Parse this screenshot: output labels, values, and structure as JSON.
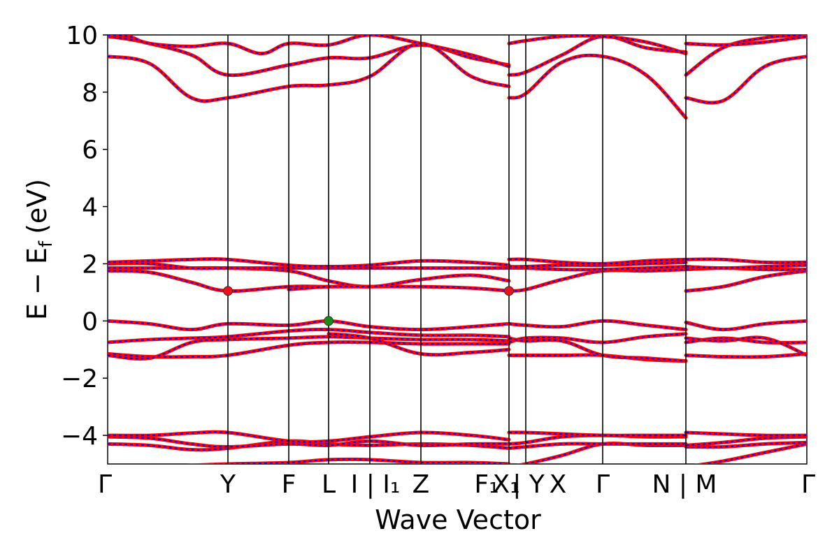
{
  "chart_data": {
    "type": "line",
    "title": "",
    "xlabel": "Wave Vector",
    "ylabel": "E − E",
    "ylabel_sub": "f",
    "ylabel_unit": "(eV)",
    "ylim": [
      -5,
      10
    ],
    "yticks": [
      -4,
      -2,
      0,
      2,
      4,
      6,
      8,
      10
    ],
    "ytick_labels": [
      "−4",
      "−2",
      "0",
      "2",
      "4",
      "6",
      "8",
      "10"
    ],
    "xlim": [
      0,
      1
    ],
    "kpoints": [
      {
        "x": 0.0,
        "label": "Γ"
      },
      {
        "x": 0.172,
        "label": "Y"
      },
      {
        "x": 0.259,
        "label": "F"
      },
      {
        "x": 0.316,
        "label": "L"
      },
      {
        "x": 0.375,
        "label": "I | I₁"
      },
      {
        "x": 0.448,
        "label": "Z"
      },
      {
        "x": 0.574,
        "label": "F₁"
      },
      {
        "x": 0.574,
        "label": "X₁"
      },
      {
        "x": 0.598,
        "label": "| Y"
      },
      {
        "x": 0.598,
        "label": "X"
      },
      {
        "x": 0.708,
        "label": "Γ"
      },
      {
        "x": 0.827,
        "label": "N | M"
      },
      {
        "x": 1.0,
        "label": "Γ"
      }
    ],
    "vlines": [
      0.172,
      0.259,
      0.316,
      0.375,
      0.448,
      0.574,
      0.598,
      0.708,
      0.827
    ],
    "series_style": {
      "primary_color": "#ff0000",
      "dash_color": "#0000ff"
    },
    "markers": [
      {
        "name": "CBM",
        "x": 0.172,
        "y": 1.05,
        "color": "#e8141b"
      },
      {
        "name": "CBM",
        "x": 0.574,
        "y": 1.05,
        "color": "#e8141b"
      },
      {
        "name": "VBM",
        "x": 0.316,
        "y": 0.0,
        "color": "#1a8a1a"
      }
    ],
    "bands": [
      {
        "x": [
          0,
          0.06,
          0.12,
          0.172,
          0.259,
          0.316,
          0.375,
          0.448,
          0.52,
          0.574
        ],
        "y": [
          -5.2,
          -5.15,
          -5.05,
          -5.0,
          -4.95,
          -4.85,
          -4.85,
          -4.95,
          -4.95,
          -5.0
        ]
      },
      {
        "x": [
          0,
          0.06,
          0.12,
          0.172,
          0.259,
          0.316,
          0.375,
          0.448,
          0.52,
          0.574
        ],
        "y": [
          -4.3,
          -4.35,
          -4.5,
          -4.45,
          -4.2,
          -4.3,
          -4.35,
          -4.3,
          -4.35,
          -4.45
        ]
      },
      {
        "x": [
          0,
          0.06,
          0.12,
          0.172,
          0.259,
          0.316,
          0.375,
          0.448,
          0.52,
          0.574
        ],
        "y": [
          -4.05,
          -4.1,
          -4.3,
          -4.4,
          -4.3,
          -4.35,
          -4.2,
          -4.35,
          -4.3,
          -4.3
        ]
      },
      {
        "x": [
          0,
          0.06,
          0.12,
          0.172,
          0.259,
          0.316,
          0.375,
          0.448,
          0.52,
          0.574
        ],
        "y": [
          -4.0,
          -4.0,
          -3.92,
          -3.9,
          -4.2,
          -4.2,
          -4.05,
          -3.9,
          -4.0,
          -4.15
        ]
      },
      {
        "x": [
          0.574,
          0.598,
          0.65,
          0.708,
          0.77,
          0.827
        ],
        "y": [
          -5.1,
          -5.0,
          -4.7,
          -4.3,
          -4.35,
          -4.35
        ]
      },
      {
        "x": [
          0.574,
          0.598,
          0.65,
          0.708,
          0.77,
          0.827
        ],
        "y": [
          -4.45,
          -4.4,
          -4.3,
          -4.3,
          -4.3,
          -4.3
        ]
      },
      {
        "x": [
          0.574,
          0.598,
          0.65,
          0.708,
          0.77,
          0.827
        ],
        "y": [
          -4.3,
          -4.25,
          -4.05,
          -4.0,
          -4.05,
          -4.05
        ]
      },
      {
        "x": [
          0.574,
          0.598,
          0.65,
          0.708,
          0.77,
          0.827
        ],
        "y": [
          -3.9,
          -3.9,
          -3.95,
          -4.0,
          -4.0,
          -4.0
        ]
      },
      {
        "x": [
          0.827,
          0.88,
          0.94,
          1.0
        ],
        "y": [
          -5.1,
          -4.9,
          -4.6,
          -4.3
        ]
      },
      {
        "x": [
          0.827,
          0.88,
          0.94,
          1.0
        ],
        "y": [
          -4.4,
          -4.4,
          -4.3,
          -4.25
        ]
      },
      {
        "x": [
          0.827,
          0.88,
          0.94,
          1.0
        ],
        "y": [
          -4.35,
          -4.25,
          -4.1,
          -4.05
        ]
      },
      {
        "x": [
          0.827,
          0.88,
          0.94,
          1.0
        ],
        "y": [
          -3.9,
          -3.95,
          -4.0,
          -4.0
        ]
      },
      {
        "x": [
          0,
          0.06,
          0.12,
          0.172,
          0.259,
          0.316,
          0.375,
          0.448,
          0.52,
          0.574
        ],
        "y": [
          -1.15,
          -1.25,
          -1.25,
          -1.2,
          -0.85,
          -0.75,
          -0.75,
          -0.8,
          -0.8,
          -0.8
        ]
      },
      {
        "x": [
          0,
          0.06,
          0.12,
          0.172,
          0.259,
          0.316,
          0.375,
          0.448,
          0.52,
          0.574
        ],
        "y": [
          -1.2,
          -1.3,
          -0.75,
          -0.65,
          -0.6,
          -0.55,
          -0.6,
          -0.65,
          -0.65,
          -0.7
        ]
      },
      {
        "x": [
          0,
          0.06,
          0.12,
          0.172,
          0.259,
          0.316,
          0.375,
          0.448,
          0.52,
          0.574
        ],
        "y": [
          -0.75,
          -0.65,
          -0.6,
          -0.55,
          -0.35,
          -0.3,
          -0.4,
          -0.5,
          -0.5,
          -0.55
        ]
      },
      {
        "x": [
          0,
          0.06,
          0.12,
          0.172,
          0.259,
          0.316,
          0.375,
          0.448,
          0.52,
          0.574
        ],
        "y": [
          0.0,
          -0.1,
          -0.3,
          -0.1,
          -0.15,
          0.0,
          -0.2,
          -0.3,
          -0.2,
          -0.1
        ]
      },
      {
        "x": [
          0.316,
          0.375,
          0.448,
          0.52,
          0.574
        ],
        "y": [
          -0.45,
          -0.6,
          -1.15,
          -1.1,
          -1.0
        ]
      },
      {
        "x": [
          0.574,
          0.598,
          0.65,
          0.708,
          0.77,
          0.827
        ],
        "y": [
          -1.2,
          -1.2,
          -1.2,
          -1.2,
          -1.35,
          -1.4
        ]
      },
      {
        "x": [
          0.574,
          0.598,
          0.65,
          0.708,
          0.77,
          0.827
        ],
        "y": [
          -0.75,
          -0.6,
          -0.6,
          -0.75,
          -0.55,
          -0.45
        ]
      },
      {
        "x": [
          0.574,
          0.598,
          0.65,
          0.708,
          0.77,
          0.827
        ],
        "y": [
          -0.6,
          -0.7,
          -0.7,
          -1.2,
          -1.3,
          -1.4
        ]
      },
      {
        "x": [
          0.574,
          0.598,
          0.65,
          0.708,
          0.77,
          0.827
        ],
        "y": [
          -0.1,
          -0.15,
          -0.2,
          0.0,
          -0.15,
          -0.3
        ]
      },
      {
        "x": [
          0.827,
          0.88,
          0.94,
          1.0
        ],
        "y": [
          -1.2,
          -1.25,
          -1.25,
          -1.15
        ]
      },
      {
        "x": [
          0.827,
          0.88,
          0.94,
          1.0
        ],
        "y": [
          -0.75,
          -0.6,
          -0.75,
          -0.75
        ]
      },
      {
        "x": [
          0.827,
          0.88,
          0.94,
          1.0
        ],
        "y": [
          -0.6,
          -0.7,
          -0.6,
          -1.2
        ]
      },
      {
        "x": [
          0.827,
          0.88,
          0.94,
          1.0
        ],
        "y": [
          -0.05,
          -0.3,
          -0.1,
          0.0
        ]
      },
      {
        "x": [
          0,
          0.06,
          0.12,
          0.172,
          0.259,
          0.316,
          0.375,
          0.448,
          0.52,
          0.574
        ],
        "y": [
          1.75,
          1.7,
          1.35,
          1.05,
          1.2,
          1.2,
          1.2,
          1.2,
          1.15,
          1.05
        ]
      },
      {
        "x": [
          0,
          0.06,
          0.12,
          0.172,
          0.259,
          0.316,
          0.375,
          0.448,
          0.52,
          0.574
        ],
        "y": [
          1.85,
          1.85,
          1.85,
          1.85,
          1.75,
          1.4,
          1.2,
          1.45,
          1.6,
          1.4
        ]
      },
      {
        "x": [
          0,
          0.06,
          0.12,
          0.172,
          0.259,
          0.316,
          0.375,
          0.448,
          0.52,
          0.574
        ],
        "y": [
          2.0,
          2.0,
          1.85,
          1.85,
          1.85,
          1.85,
          1.85,
          1.85,
          1.85,
          1.85
        ]
      },
      {
        "x": [
          0,
          0.06,
          0.12,
          0.172,
          0.259,
          0.316,
          0.375,
          0.448,
          0.52,
          0.574
        ],
        "y": [
          2.05,
          2.1,
          2.15,
          2.15,
          1.95,
          1.9,
          1.95,
          2.1,
          2.05,
          1.95
        ]
      },
      {
        "x": [
          0.259,
          0.316,
          0.375
        ],
        "y": [
          1.1,
          1.2,
          1.2
        ]
      },
      {
        "x": [
          0.574,
          0.598,
          0.65,
          0.708,
          0.77,
          0.827
        ],
        "y": [
          1.05,
          1.1,
          1.45,
          1.75,
          1.75,
          1.8
        ]
      },
      {
        "x": [
          0.574,
          0.598,
          0.65,
          0.708,
          0.77,
          0.827
        ],
        "y": [
          1.85,
          1.85,
          1.8,
          1.8,
          1.85,
          1.9
        ]
      },
      {
        "x": [
          0.574,
          0.598,
          0.65,
          0.708,
          0.77,
          0.827
        ],
        "y": [
          1.9,
          1.9,
          1.95,
          1.95,
          2.0,
          2.05
        ]
      },
      {
        "x": [
          0.574,
          0.598,
          0.65,
          0.708,
          0.77,
          0.827
        ],
        "y": [
          2.15,
          2.15,
          2.05,
          2.0,
          2.1,
          2.15
        ]
      },
      {
        "x": [
          0.827,
          0.88,
          0.94,
          1.0
        ],
        "y": [
          1.05,
          1.2,
          1.55,
          1.75
        ]
      },
      {
        "x": [
          0.827,
          0.88,
          0.94,
          1.0
        ],
        "y": [
          1.8,
          1.85,
          1.8,
          1.8
        ]
      },
      {
        "x": [
          0.827,
          0.88,
          0.94,
          1.0
        ],
        "y": [
          1.9,
          1.85,
          1.9,
          1.95
        ]
      },
      {
        "x": [
          0.827,
          0.88,
          0.94,
          1.0
        ],
        "y": [
          2.15,
          2.15,
          2.05,
          2.05
        ]
      },
      {
        "x": [
          0,
          0.06,
          0.12,
          0.172,
          0.259,
          0.316,
          0.375,
          0.448,
          0.52,
          0.574
        ],
        "y": [
          9.25,
          9.0,
          7.8,
          7.8,
          8.2,
          8.25,
          8.55,
          9.7,
          8.55,
          8.2
        ]
      },
      {
        "x": [
          0,
          0.03,
          0.06,
          0.12,
          0.172,
          0.259,
          0.316,
          0.375,
          0.448,
          0.52,
          0.574
        ],
        "y": [
          9.95,
          9.85,
          9.7,
          9.3,
          8.6,
          8.95,
          9.2,
          9.2,
          9.65,
          9.2,
          8.95
        ]
      },
      {
        "x": [
          0,
          0.03,
          0.06,
          0.12,
          0.172,
          0.22,
          0.259,
          0.316,
          0.375,
          0.448,
          0.52,
          0.574
        ],
        "y": [
          10.0,
          9.95,
          9.7,
          9.6,
          9.7,
          9.35,
          9.7,
          9.65,
          10.0,
          9.7,
          9.3,
          8.9
        ]
      },
      {
        "x": [
          0.574,
          0.598,
          0.65,
          0.708,
          0.77,
          0.827
        ],
        "y": [
          7.8,
          7.95,
          9.05,
          9.25,
          8.6,
          7.1
        ]
      },
      {
        "x": [
          0.574,
          0.598,
          0.65,
          0.708,
          0.77,
          0.827
        ],
        "y": [
          8.6,
          8.7,
          9.3,
          9.95,
          9.55,
          9.4
        ]
      },
      {
        "x": [
          0.574,
          0.598,
          0.65,
          0.708,
          0.77,
          0.827
        ],
        "y": [
          9.7,
          9.8,
          9.95,
          9.95,
          9.75,
          9.35
        ]
      },
      {
        "x": [
          0.827,
          0.88,
          0.94,
          1.0
        ],
        "y": [
          7.8,
          7.7,
          8.9,
          9.25
        ]
      },
      {
        "x": [
          0.827,
          0.88,
          0.94,
          1.0
        ],
        "y": [
          8.6,
          9.55,
          9.9,
          10.0
        ]
      },
      {
        "x": [
          0.827,
          0.88,
          0.94,
          1.0
        ],
        "y": [
          9.7,
          9.65,
          9.75,
          9.95
        ]
      }
    ]
  }
}
